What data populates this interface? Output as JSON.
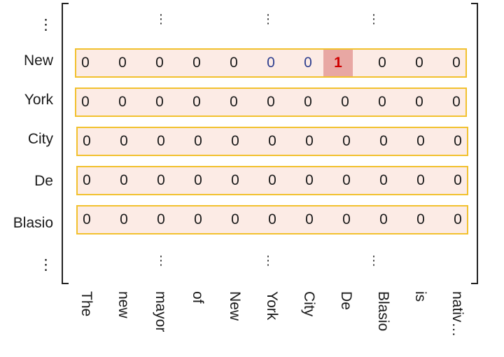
{
  "row_labels": [
    "⋮",
    "New",
    "York",
    "City",
    "De",
    "Blasio",
    "⋮"
  ],
  "column_labels": [
    "The",
    "new",
    "mayor",
    "of",
    "New",
    "York",
    "City",
    "De",
    "Blasio",
    "is",
    "nativ…"
  ],
  "ellipsis": "⋮",
  "matrix": [
    [
      0,
      0,
      0,
      0,
      0,
      0,
      0,
      1,
      0,
      0,
      0
    ],
    [
      0,
      0,
      0,
      0,
      0,
      0,
      0,
      0,
      0,
      0,
      0
    ],
    [
      0,
      0,
      0,
      0,
      0,
      0,
      0,
      0,
      0,
      0,
      0
    ],
    [
      0,
      0,
      0,
      0,
      0,
      0,
      0,
      0,
      0,
      0,
      0
    ],
    [
      0,
      0,
      0,
      0,
      0,
      0,
      0,
      0,
      0,
      0,
      0
    ]
  ],
  "colors": {
    "row_border": "#f2c12e",
    "row_fill": "#fcebe5",
    "highlight_fill": "#e8a7a3",
    "highlight_text": "#d00000",
    "blue_text": "#2f3f8f"
  }
}
